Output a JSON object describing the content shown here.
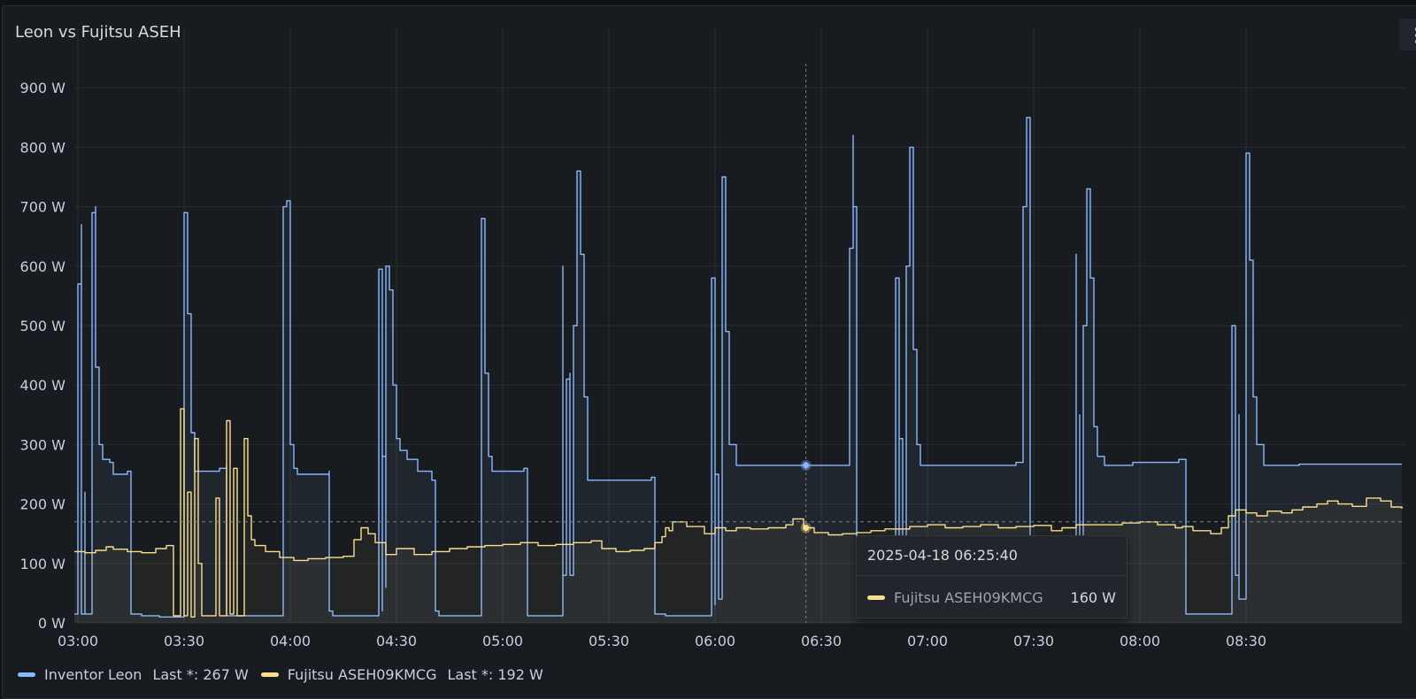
{
  "panel": {
    "title": "Leon vs Fujitsu ASEH"
  },
  "colors": {
    "series1": "#8ab8ff",
    "series2": "#fade8e",
    "background": "#181b1f",
    "grid": "#2a2d33"
  },
  "icons": {
    "menu": "vertical-dots-icon"
  },
  "legend": {
    "items": [
      {
        "name": "Inventor Leon",
        "stat": "Last *: 267 W"
      },
      {
        "name": "Fujitsu ASEH09KMCG",
        "stat": "Last *: 192 W"
      }
    ]
  },
  "tooltip": {
    "time": "2025-04-18 06:25:40",
    "series": "Fujitsu ASEH09KMCG",
    "value": "160 W"
  },
  "chart_data": {
    "type": "line",
    "title": "Leon vs Fujitsu ASEH",
    "xlabel": "",
    "ylabel": "",
    "unit": "W",
    "xlim": [
      "02:59",
      "09:15"
    ],
    "ylim": [
      0,
      900
    ],
    "x_ticks": [
      "03:00",
      "03:30",
      "04:00",
      "04:30",
      "05:00",
      "05:30",
      "06:00",
      "06:30",
      "07:00",
      "07:30",
      "08:00",
      "08:30"
    ],
    "y_ticks": [
      "0 W",
      "100 W",
      "200 W",
      "300 W",
      "400 W",
      "500 W",
      "600 W",
      "700 W",
      "800 W",
      "900 W"
    ],
    "grid": true,
    "legend_position": "bottom-left",
    "crosshair": {
      "x": "06:25:40",
      "y": 170
    },
    "series": [
      {
        "name": "Inventor Leon",
        "color": "#8ab8ff",
        "points": [
          [
            "02:59",
            15
          ],
          [
            "03:00",
            15
          ],
          [
            "03:00",
            570
          ],
          [
            "03:01",
            670
          ],
          [
            "03:01",
            15
          ],
          [
            "03:02",
            220
          ],
          [
            "03:02",
            15
          ],
          [
            "03:03",
            15
          ],
          [
            "03:04",
            690
          ],
          [
            "03:05",
            700
          ],
          [
            "03:05",
            430
          ],
          [
            "03:06",
            300
          ],
          [
            "03:07",
            275
          ],
          [
            "03:09",
            270
          ],
          [
            "03:10",
            250
          ],
          [
            "03:14",
            255
          ],
          [
            "03:15",
            15
          ],
          [
            "03:18",
            12
          ],
          [
            "03:23",
            10
          ],
          [
            "03:29",
            10
          ],
          [
            "03:30",
            690
          ],
          [
            "03:31",
            520
          ],
          [
            "03:32",
            320
          ],
          [
            "03:33",
            255
          ],
          [
            "03:40",
            260
          ],
          [
            "03:42",
            265
          ],
          [
            "03:42",
            12
          ],
          [
            "03:52",
            12
          ],
          [
            "03:58",
            12
          ],
          [
            "03:58",
            700
          ],
          [
            "03:59",
            710
          ],
          [
            "04:00",
            440
          ],
          [
            "04:00",
            300
          ],
          [
            "04:01",
            260
          ],
          [
            "04:02",
            250
          ],
          [
            "04:11",
            255
          ],
          [
            "04:11",
            20
          ],
          [
            "04:12",
            12
          ],
          [
            "04:25",
            12
          ],
          [
            "04:25",
            595
          ],
          [
            "04:26",
            20
          ],
          [
            "04:26",
            280
          ],
          [
            "04:27",
            60
          ],
          [
            "04:27",
            600
          ],
          [
            "04:28",
            560
          ],
          [
            "04:29",
            400
          ],
          [
            "04:30",
            310
          ],
          [
            "04:31",
            290
          ],
          [
            "04:33",
            275
          ],
          [
            "04:36",
            255
          ],
          [
            "04:40",
            240
          ],
          [
            "04:41",
            20
          ],
          [
            "04:42",
            12
          ],
          [
            "04:53",
            12
          ],
          [
            "04:54",
            680
          ],
          [
            "04:55",
            420
          ],
          [
            "04:56",
            280
          ],
          [
            "04:57",
            255
          ],
          [
            "05:06",
            260
          ],
          [
            "05:07",
            12
          ],
          [
            "05:16",
            12
          ],
          [
            "05:17",
            600
          ],
          [
            "05:17",
            80
          ],
          [
            "05:18",
            410
          ],
          [
            "05:19",
            420
          ],
          [
            "05:19",
            80
          ],
          [
            "05:20",
            500
          ],
          [
            "05:21",
            760
          ],
          [
            "05:22",
            620
          ],
          [
            "05:23",
            380
          ],
          [
            "05:24",
            240
          ],
          [
            "05:34",
            240
          ],
          [
            "05:42",
            245
          ],
          [
            "05:43",
            15
          ],
          [
            "05:46",
            12
          ],
          [
            "05:48",
            12
          ],
          [
            "05:59",
            12
          ],
          [
            "05:59",
            580
          ],
          [
            "06:00",
            30
          ],
          [
            "06:00",
            250
          ],
          [
            "06:01",
            40
          ],
          [
            "06:02",
            750
          ],
          [
            "06:03",
            490
          ],
          [
            "06:04",
            300
          ],
          [
            "06:06",
            265
          ],
          [
            "06:25",
            265
          ],
          [
            "06:38",
            267
          ],
          [
            "06:38",
            630
          ],
          [
            "06:39",
            820
          ],
          [
            "06:39",
            700
          ],
          [
            "06:40",
            15
          ],
          [
            "06:51",
            15
          ],
          [
            "06:51",
            580
          ],
          [
            "06:52",
            30
          ],
          [
            "06:52",
            310
          ],
          [
            "06:53",
            20
          ],
          [
            "06:54",
            600
          ],
          [
            "06:55",
            800
          ],
          [
            "06:56",
            460
          ],
          [
            "06:57",
            300
          ],
          [
            "06:58",
            265
          ],
          [
            "07:25",
            270
          ],
          [
            "07:27",
            700
          ],
          [
            "07:28",
            850
          ],
          [
            "07:29",
            430
          ],
          [
            "07:29",
            15
          ],
          [
            "07:41",
            15
          ],
          [
            "07:42",
            620
          ],
          [
            "07:42",
            30
          ],
          [
            "07:43",
            350
          ],
          [
            "07:43",
            30
          ],
          [
            "07:44",
            500
          ],
          [
            "07:45",
            730
          ],
          [
            "07:46",
            580
          ],
          [
            "07:47",
            330
          ],
          [
            "07:48",
            280
          ],
          [
            "07:50",
            265
          ],
          [
            "07:58",
            270
          ],
          [
            "08:11",
            275
          ],
          [
            "08:13",
            270
          ],
          [
            "08:13",
            15
          ],
          [
            "08:17",
            15
          ],
          [
            "08:26",
            15
          ],
          [
            "08:26",
            500
          ],
          [
            "08:27",
            80
          ],
          [
            "08:28",
            350
          ],
          [
            "08:28",
            40
          ],
          [
            "08:30",
            790
          ],
          [
            "08:31",
            610
          ],
          [
            "08:32",
            380
          ],
          [
            "08:33",
            300
          ],
          [
            "08:35",
            265
          ],
          [
            "08:45",
            267
          ],
          [
            "08:53",
            267
          ],
          [
            "09:14",
            267
          ]
        ]
      },
      {
        "name": "Fujitsu ASEH09KMCG",
        "color": "#fade8e",
        "points": [
          [
            "02:59",
            120
          ],
          [
            "03:02",
            118
          ],
          [
            "03:05",
            122
          ],
          [
            "03:08",
            128
          ],
          [
            "03:10",
            124
          ],
          [
            "03:14",
            120
          ],
          [
            "03:18",
            118
          ],
          [
            "03:22",
            125
          ],
          [
            "03:25",
            130
          ],
          [
            "03:27",
            12
          ],
          [
            "03:29",
            12
          ],
          [
            "03:29",
            360
          ],
          [
            "03:30",
            12
          ],
          [
            "03:31",
            220
          ],
          [
            "03:32",
            10
          ],
          [
            "03:33",
            310
          ],
          [
            "03:34",
            100
          ],
          [
            "03:35",
            12
          ],
          [
            "03:38",
            12
          ],
          [
            "03:39",
            210
          ],
          [
            "03:40",
            12
          ],
          [
            "03:42",
            340
          ],
          [
            "03:43",
            15
          ],
          [
            "03:44",
            260
          ],
          [
            "03:45",
            12
          ],
          [
            "03:47",
            310
          ],
          [
            "03:48",
            180
          ],
          [
            "03:49",
            140
          ],
          [
            "03:50",
            130
          ],
          [
            "03:53",
            120
          ],
          [
            "03:57",
            110
          ],
          [
            "04:01",
            105
          ],
          [
            "04:05",
            108
          ],
          [
            "04:10",
            110
          ],
          [
            "04:15",
            112
          ],
          [
            "04:18",
            140
          ],
          [
            "04:20",
            160
          ],
          [
            "04:22",
            150
          ],
          [
            "04:24",
            135
          ],
          [
            "04:27",
            115
          ],
          [
            "04:30",
            125
          ],
          [
            "04:35",
            115
          ],
          [
            "04:40",
            120
          ],
          [
            "04:45",
            125
          ],
          [
            "04:50",
            128
          ],
          [
            "04:55",
            130
          ],
          [
            "05:00",
            132
          ],
          [
            "05:05",
            135
          ],
          [
            "05:10",
            130
          ],
          [
            "05:15",
            132
          ],
          [
            "05:20",
            135
          ],
          [
            "05:25",
            138
          ],
          [
            "05:28",
            125
          ],
          [
            "05:32",
            120
          ],
          [
            "05:36",
            122
          ],
          [
            "05:40",
            125
          ],
          [
            "05:43",
            135
          ],
          [
            "05:45",
            145
          ],
          [
            "05:46",
            160
          ],
          [
            "05:47",
            155
          ],
          [
            "05:48",
            170
          ],
          [
            "05:52",
            162
          ],
          [
            "05:57",
            150
          ],
          [
            "06:00",
            160
          ],
          [
            "06:03",
            155
          ],
          [
            "06:06",
            160
          ],
          [
            "06:10",
            158
          ],
          [
            "06:15",
            160
          ],
          [
            "06:20",
            165
          ],
          [
            "06:22",
            175
          ],
          [
            "06:25",
            160
          ],
          [
            "06:28",
            152
          ],
          [
            "06:32",
            148
          ],
          [
            "06:36",
            150
          ],
          [
            "06:40",
            152
          ],
          [
            "06:44",
            155
          ],
          [
            "06:48",
            158
          ],
          [
            "06:55",
            162
          ],
          [
            "07:00",
            165
          ],
          [
            "07:05",
            160
          ],
          [
            "07:10",
            162
          ],
          [
            "07:15",
            165
          ],
          [
            "07:20",
            160
          ],
          [
            "07:25",
            162
          ],
          [
            "07:30",
            164
          ],
          [
            "07:35",
            155
          ],
          [
            "07:38",
            160
          ],
          [
            "07:42",
            165
          ],
          [
            "07:50",
            165
          ],
          [
            "07:55",
            168
          ],
          [
            "08:00",
            170
          ],
          [
            "08:05",
            165
          ],
          [
            "08:10",
            160
          ],
          [
            "08:12",
            162
          ],
          [
            "08:15",
            155
          ],
          [
            "08:20",
            150
          ],
          [
            "08:23",
            160
          ],
          [
            "08:25",
            180
          ],
          [
            "08:27",
            190
          ],
          [
            "08:30",
            185
          ],
          [
            "08:33",
            180
          ],
          [
            "08:36",
            188
          ],
          [
            "08:40",
            185
          ],
          [
            "08:43",
            190
          ],
          [
            "08:46",
            195
          ],
          [
            "08:50",
            200
          ],
          [
            "08:53",
            205
          ],
          [
            "08:56",
            200
          ],
          [
            "09:00",
            196
          ],
          [
            "09:04",
            210
          ],
          [
            "09:08",
            205
          ],
          [
            "09:11",
            195
          ],
          [
            "09:14",
            192
          ]
        ]
      }
    ]
  }
}
